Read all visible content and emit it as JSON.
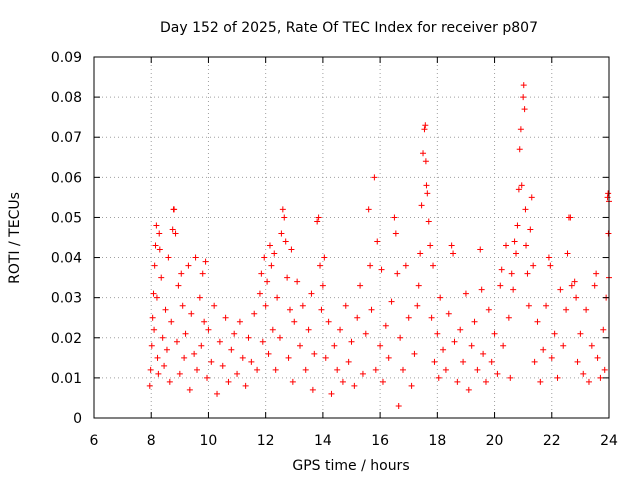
{
  "chart_data": {
    "type": "scatter",
    "title": "Day 152 of 2025, Rate Of TEC Index for receiver p807",
    "xlabel": "GPS time / hours",
    "ylabel": "ROTI / TECUs",
    "xlim": [
      6,
      24
    ],
    "ylim": [
      0,
      0.09
    ],
    "xticks": [
      6,
      8,
      10,
      12,
      14,
      16,
      18,
      20,
      22,
      24
    ],
    "xtick_labels": [
      "6",
      "8",
      "10",
      "12",
      "14",
      "16",
      "18",
      "20",
      "22",
      "24"
    ],
    "yticks": [
      0,
      0.01,
      0.02,
      0.03,
      0.04,
      0.05,
      0.06,
      0.07,
      0.08,
      0.09
    ],
    "ytick_labels": [
      "0",
      "0.01",
      "0.02",
      "0.03",
      "0.04",
      "0.05",
      "0.06",
      "0.07",
      "0.08",
      "0.09"
    ],
    "grid": true,
    "marker": "+",
    "color": "#ff0000",
    "series": [
      {
        "name": "ROTI",
        "points": [
          [
            7.95,
            0.008
          ],
          [
            7.98,
            0.012
          ],
          [
            8.02,
            0.018
          ],
          [
            8.05,
            0.025
          ],
          [
            8.08,
            0.031
          ],
          [
            8.1,
            0.022
          ],
          [
            8.12,
            0.038
          ],
          [
            8.15,
            0.043
          ],
          [
            8.18,
            0.048
          ],
          [
            8.2,
            0.03
          ],
          [
            8.22,
            0.015
          ],
          [
            8.25,
            0.011
          ],
          [
            8.28,
            0.046
          ],
          [
            8.3,
            0.042
          ],
          [
            8.35,
            0.035
          ],
          [
            8.4,
            0.02
          ],
          [
            8.45,
            0.013
          ],
          [
            8.5,
            0.027
          ],
          [
            8.55,
            0.017
          ],
          [
            8.6,
            0.04
          ],
          [
            8.65,
            0.009
          ],
          [
            8.7,
            0.024
          ],
          [
            8.75,
            0.047
          ],
          [
            8.78,
            0.052
          ],
          [
            8.8,
            0.052
          ],
          [
            8.85,
            0.046
          ],
          [
            8.9,
            0.019
          ],
          [
            8.95,
            0.033
          ],
          [
            9.0,
            0.011
          ],
          [
            9.05,
            0.036
          ],
          [
            9.1,
            0.028
          ],
          [
            9.15,
            0.015
          ],
          [
            9.2,
            0.021
          ],
          [
            9.3,
            0.038
          ],
          [
            9.35,
            0.007
          ],
          [
            9.4,
            0.026
          ],
          [
            9.5,
            0.016
          ],
          [
            9.55,
            0.04
          ],
          [
            9.6,
            0.012
          ],
          [
            9.7,
            0.03
          ],
          [
            9.75,
            0.018
          ],
          [
            9.8,
            0.036
          ],
          [
            9.85,
            0.024
          ],
          [
            9.9,
            0.039
          ],
          [
            9.95,
            0.01
          ],
          [
            10.0,
            0.022
          ],
          [
            10.1,
            0.014
          ],
          [
            10.2,
            0.028
          ],
          [
            10.3,
            0.006
          ],
          [
            10.4,
            0.019
          ],
          [
            10.5,
            0.013
          ],
          [
            10.6,
            0.025
          ],
          [
            10.7,
            0.009
          ],
          [
            10.8,
            0.017
          ],
          [
            10.9,
            0.021
          ],
          [
            11.0,
            0.011
          ],
          [
            11.1,
            0.024
          ],
          [
            11.2,
            0.015
          ],
          [
            11.3,
            0.008
          ],
          [
            11.4,
            0.02
          ],
          [
            11.5,
            0.014
          ],
          [
            11.6,
            0.026
          ],
          [
            11.7,
            0.012
          ],
          [
            11.8,
            0.031
          ],
          [
            11.85,
            0.036
          ],
          [
            11.9,
            0.019
          ],
          [
            11.95,
            0.04
          ],
          [
            12.0,
            0.028
          ],
          [
            12.05,
            0.034
          ],
          [
            12.1,
            0.016
          ],
          [
            12.15,
            0.043
          ],
          [
            12.2,
            0.038
          ],
          [
            12.25,
            0.022
          ],
          [
            12.3,
            0.041
          ],
          [
            12.35,
            0.012
          ],
          [
            12.4,
            0.03
          ],
          [
            12.5,
            0.02
          ],
          [
            12.55,
            0.046
          ],
          [
            12.6,
            0.052
          ],
          [
            12.65,
            0.05
          ],
          [
            12.7,
            0.044
          ],
          [
            12.75,
            0.035
          ],
          [
            12.8,
            0.015
          ],
          [
            12.85,
            0.027
          ],
          [
            12.9,
            0.042
          ],
          [
            12.95,
            0.009
          ],
          [
            13.0,
            0.024
          ],
          [
            13.1,
            0.034
          ],
          [
            13.2,
            0.018
          ],
          [
            13.3,
            0.028
          ],
          [
            13.4,
            0.012
          ],
          [
            13.5,
            0.022
          ],
          [
            13.6,
            0.031
          ],
          [
            13.65,
            0.007
          ],
          [
            13.7,
            0.016
          ],
          [
            13.8,
            0.049
          ],
          [
            13.85,
            0.05
          ],
          [
            13.9,
            0.038
          ],
          [
            13.95,
            0.027
          ],
          [
            14.0,
            0.033
          ],
          [
            14.05,
            0.04
          ],
          [
            14.1,
            0.015
          ],
          [
            14.2,
            0.024
          ],
          [
            14.3,
            0.006
          ],
          [
            14.4,
            0.018
          ],
          [
            14.5,
            0.012
          ],
          [
            14.6,
            0.022
          ],
          [
            14.7,
            0.009
          ],
          [
            14.8,
            0.028
          ],
          [
            14.9,
            0.014
          ],
          [
            15.0,
            0.019
          ],
          [
            15.1,
            0.008
          ],
          [
            15.2,
            0.025
          ],
          [
            15.3,
            0.033
          ],
          [
            15.4,
            0.011
          ],
          [
            15.5,
            0.021
          ],
          [
            15.6,
            0.052
          ],
          [
            15.65,
            0.038
          ],
          [
            15.7,
            0.027
          ],
          [
            15.8,
            0.06
          ],
          [
            15.85,
            0.012
          ],
          [
            15.9,
            0.044
          ],
          [
            16.0,
            0.018
          ],
          [
            16.05,
            0.037
          ],
          [
            16.1,
            0.009
          ],
          [
            16.2,
            0.023
          ],
          [
            16.3,
            0.015
          ],
          [
            16.4,
            0.029
          ],
          [
            16.5,
            0.05
          ],
          [
            16.55,
            0.046
          ],
          [
            16.6,
            0.036
          ],
          [
            16.65,
            0.003
          ],
          [
            16.7,
            0.02
          ],
          [
            16.8,
            0.012
          ],
          [
            16.9,
            0.038
          ],
          [
            17.0,
            0.025
          ],
          [
            17.1,
            0.008
          ],
          [
            17.2,
            0.016
          ],
          [
            17.3,
            0.028
          ],
          [
            17.35,
            0.033
          ],
          [
            17.4,
            0.041
          ],
          [
            17.45,
            0.053
          ],
          [
            17.5,
            0.066
          ],
          [
            17.55,
            0.072
          ],
          [
            17.58,
            0.073
          ],
          [
            17.6,
            0.064
          ],
          [
            17.62,
            0.058
          ],
          [
            17.65,
            0.056
          ],
          [
            17.7,
            0.049
          ],
          [
            17.75,
            0.043
          ],
          [
            17.8,
            0.025
          ],
          [
            17.85,
            0.038
          ],
          [
            17.9,
            0.014
          ],
          [
            18.0,
            0.021
          ],
          [
            18.05,
            0.01
          ],
          [
            18.1,
            0.03
          ],
          [
            18.2,
            0.017
          ],
          [
            18.3,
            0.012
          ],
          [
            18.4,
            0.026
          ],
          [
            18.5,
            0.043
          ],
          [
            18.55,
            0.041
          ],
          [
            18.6,
            0.019
          ],
          [
            18.7,
            0.009
          ],
          [
            18.8,
            0.022
          ],
          [
            18.9,
            0.014
          ],
          [
            19.0,
            0.031
          ],
          [
            19.1,
            0.007
          ],
          [
            19.2,
            0.018
          ],
          [
            19.3,
            0.024
          ],
          [
            19.4,
            0.012
          ],
          [
            19.5,
            0.042
          ],
          [
            19.55,
            0.032
          ],
          [
            19.6,
            0.016
          ],
          [
            19.7,
            0.009
          ],
          [
            19.8,
            0.027
          ],
          [
            19.9,
            0.014
          ],
          [
            20.0,
            0.021
          ],
          [
            20.1,
            0.011
          ],
          [
            20.2,
            0.033
          ],
          [
            20.25,
            0.037
          ],
          [
            20.3,
            0.018
          ],
          [
            20.4,
            0.043
          ],
          [
            20.5,
            0.025
          ],
          [
            20.55,
            0.01
          ],
          [
            20.6,
            0.036
          ],
          [
            20.65,
            0.032
          ],
          [
            20.7,
            0.044
          ],
          [
            20.75,
            0.041
          ],
          [
            20.8,
            0.048
          ],
          [
            20.85,
            0.057
          ],
          [
            20.88,
            0.067
          ],
          [
            20.92,
            0.072
          ],
          [
            20.95,
            0.058
          ],
          [
            21.0,
            0.08
          ],
          [
            21.02,
            0.083
          ],
          [
            21.05,
            0.077
          ],
          [
            21.08,
            0.052
          ],
          [
            21.1,
            0.043
          ],
          [
            21.15,
            0.036
          ],
          [
            21.2,
            0.028
          ],
          [
            21.25,
            0.047
          ],
          [
            21.3,
            0.055
          ],
          [
            21.35,
            0.038
          ],
          [
            21.4,
            0.014
          ],
          [
            21.5,
            0.024
          ],
          [
            21.6,
            0.009
          ],
          [
            21.7,
            0.017
          ],
          [
            21.8,
            0.028
          ],
          [
            21.9,
            0.04
          ],
          [
            21.95,
            0.038
          ],
          [
            22.0,
            0.015
          ],
          [
            22.1,
            0.021
          ],
          [
            22.2,
            0.01
          ],
          [
            22.3,
            0.032
          ],
          [
            22.4,
            0.018
          ],
          [
            22.5,
            0.027
          ],
          [
            22.55,
            0.041
          ],
          [
            22.6,
            0.05
          ],
          [
            22.65,
            0.05
          ],
          [
            22.7,
            0.033
          ],
          [
            22.8,
            0.034
          ],
          [
            22.85,
            0.03
          ],
          [
            22.9,
            0.014
          ],
          [
            23.0,
            0.021
          ],
          [
            23.1,
            0.011
          ],
          [
            23.2,
            0.027
          ],
          [
            23.3,
            0.009
          ],
          [
            23.4,
            0.018
          ],
          [
            23.5,
            0.033
          ],
          [
            23.55,
            0.036
          ],
          [
            23.6,
            0.015
          ],
          [
            23.7,
            0.01
          ],
          [
            23.8,
            0.022
          ],
          [
            23.85,
            0.012
          ],
          [
            23.9,
            0.03
          ],
          [
            23.95,
            0.055
          ],
          [
            23.97,
            0.056
          ],
          [
            23.98,
            0.046
          ],
          [
            24.0,
            0.054
          ],
          [
            24.0,
            0.035
          ]
        ]
      }
    ]
  }
}
